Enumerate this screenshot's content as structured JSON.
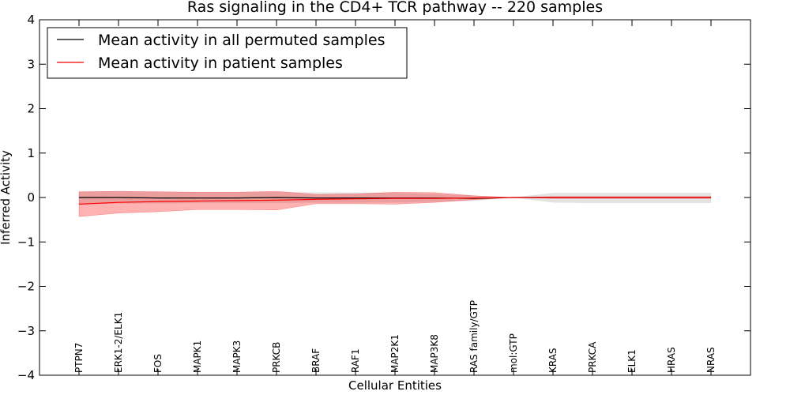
{
  "chart_data": {
    "type": "line",
    "title": "Ras signaling in the CD4+ TCR pathway -- 220 samples",
    "xlabel": "Cellular Entities",
    "ylabel": "Inferred Activity",
    "ylim": [
      -4,
      4
    ],
    "yticks": [
      "4",
      "3",
      "2",
      "1",
      "0",
      "−1",
      "−2",
      "−3",
      "−4"
    ],
    "ytick_values": [
      4,
      3,
      2,
      1,
      0,
      -1,
      -2,
      -3,
      -4
    ],
    "categories": [
      "PTPN7",
      "ERK1-2/ELK1",
      "FOS",
      "MAPK1",
      "MAPK3",
      "PRKCB",
      "BRAF",
      "RAF1",
      "MAP2K1",
      "MAP3K8",
      "RAS family/GTP",
      "mol:GTP",
      "KRAS",
      "PRKCA",
      "ELK1",
      "HRAS",
      "NRAS"
    ],
    "legend_position": "top-left",
    "series": [
      {
        "name": "Mean activity in all permuted samples",
        "color": "#000000",
        "values": [
          0.0,
          0.0,
          -0.01,
          -0.01,
          -0.01,
          0.0,
          -0.01,
          -0.01,
          -0.01,
          -0.01,
          -0.02,
          0.0,
          0.0,
          0.0,
          0.0,
          0.0,
          0.0
        ],
        "band_upper": [
          0.13,
          0.13,
          0.13,
          0.12,
          0.12,
          0.12,
          0.11,
          0.11,
          0.1,
          0.08,
          0.04,
          0.0,
          0.1,
          0.1,
          0.1,
          0.1,
          0.1
        ],
        "band_lower": [
          -0.13,
          -0.13,
          -0.13,
          -0.12,
          -0.12,
          -0.12,
          -0.11,
          -0.11,
          -0.11,
          -0.09,
          -0.07,
          0.0,
          -0.11,
          -0.12,
          -0.12,
          -0.12,
          -0.12
        ],
        "band_color": "#cccccc"
      },
      {
        "name": "Mean activity in patient samples",
        "color": "#ff0000",
        "values": [
          -0.15,
          -0.11,
          -0.09,
          -0.08,
          -0.07,
          -0.06,
          -0.04,
          -0.03,
          -0.02,
          -0.02,
          -0.01,
          0.0,
          0.0,
          0.0,
          0.0,
          0.0,
          0.0
        ],
        "band_upper": [
          0.13,
          0.14,
          0.13,
          0.12,
          0.12,
          0.14,
          0.07,
          0.08,
          0.12,
          0.11,
          0.04,
          0.0,
          0.02,
          0.02,
          0.02,
          0.02,
          0.02
        ],
        "band_lower": [
          -0.43,
          -0.35,
          -0.32,
          -0.27,
          -0.27,
          -0.28,
          -0.14,
          -0.14,
          -0.15,
          -0.11,
          -0.05,
          0.0,
          -0.02,
          -0.02,
          -0.02,
          -0.02,
          -0.02
        ],
        "band_color": "#ff0000"
      }
    ]
  }
}
